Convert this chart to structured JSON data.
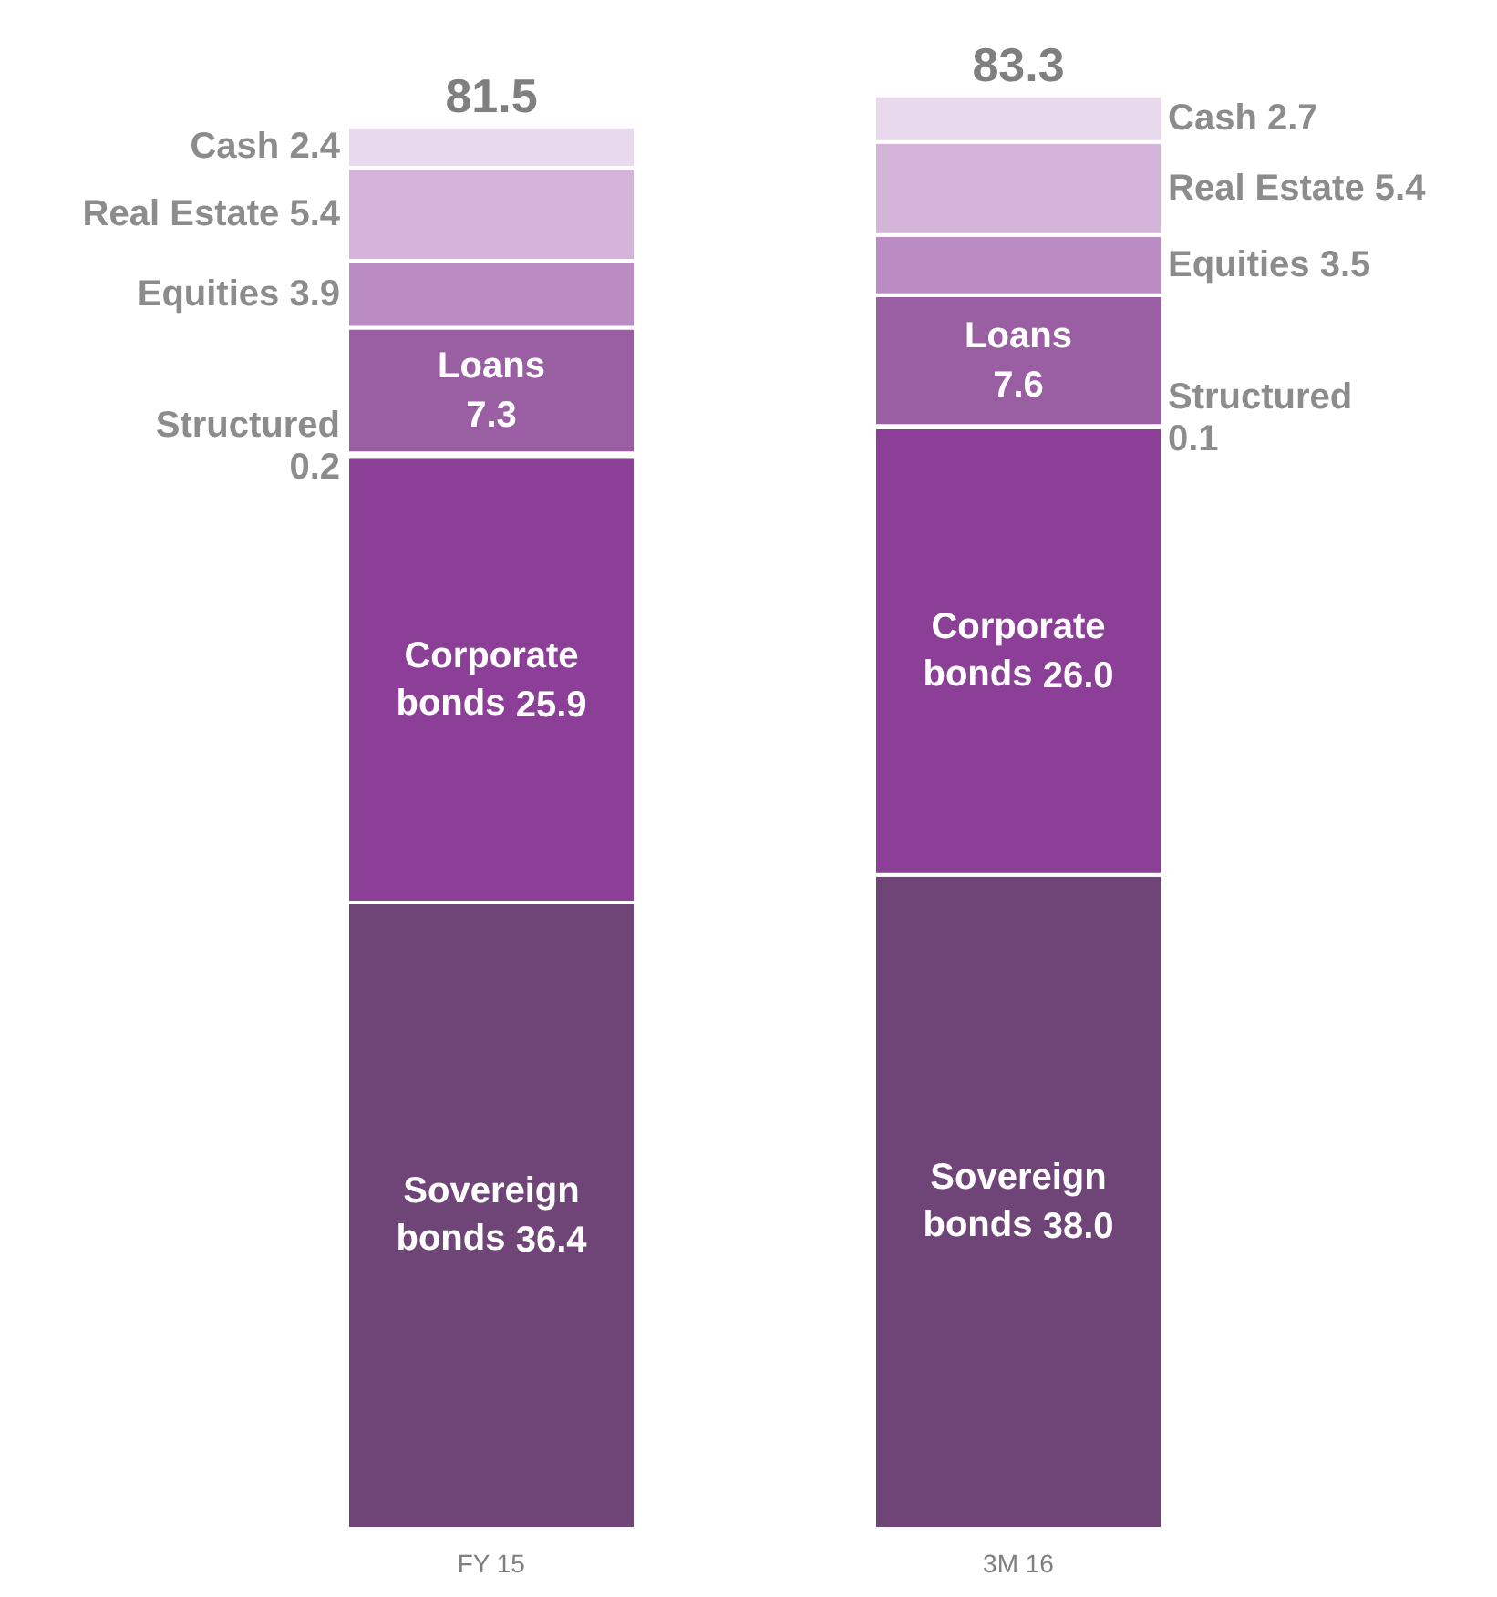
{
  "chart_data": {
    "type": "bar",
    "stacked": true,
    "categories": [
      "FY 15",
      "3M 16"
    ],
    "series": [
      {
        "name": "Sovereign bonds",
        "color": "#6e4576",
        "values": [
          36.4,
          38.0
        ],
        "value_labels": [
          "36.4",
          "38.0"
        ]
      },
      {
        "name": "Corporate bonds",
        "color": "#8b3f96",
        "values": [
          25.9,
          26.0
        ],
        "value_labels": [
          "25.9",
          "26.0"
        ]
      },
      {
        "name": "Structured",
        "color": "#a366ad",
        "values": [
          0.2,
          0.1
        ],
        "value_labels": [
          "0.2",
          "0.1"
        ]
      },
      {
        "name": "Loans",
        "color": "#9a5fa3",
        "values": [
          7.3,
          7.6
        ],
        "value_labels": [
          "7.3",
          "7.6"
        ]
      },
      {
        "name": "Equities",
        "color": "#bb8cc4",
        "values": [
          3.9,
          3.5
        ],
        "value_labels": [
          "3.9",
          "3.5"
        ]
      },
      {
        "name": "Real Estate",
        "color": "#d5b4da",
        "values": [
          5.4,
          5.4
        ],
        "value_labels": [
          "5.4",
          "5.4"
        ]
      },
      {
        "name": "Cash",
        "color": "#e8d9ec",
        "values": [
          2.4,
          2.7
        ],
        "value_labels": [
          "2.4",
          "2.7"
        ]
      }
    ],
    "totals": [
      "81.5",
      "83.3"
    ]
  }
}
